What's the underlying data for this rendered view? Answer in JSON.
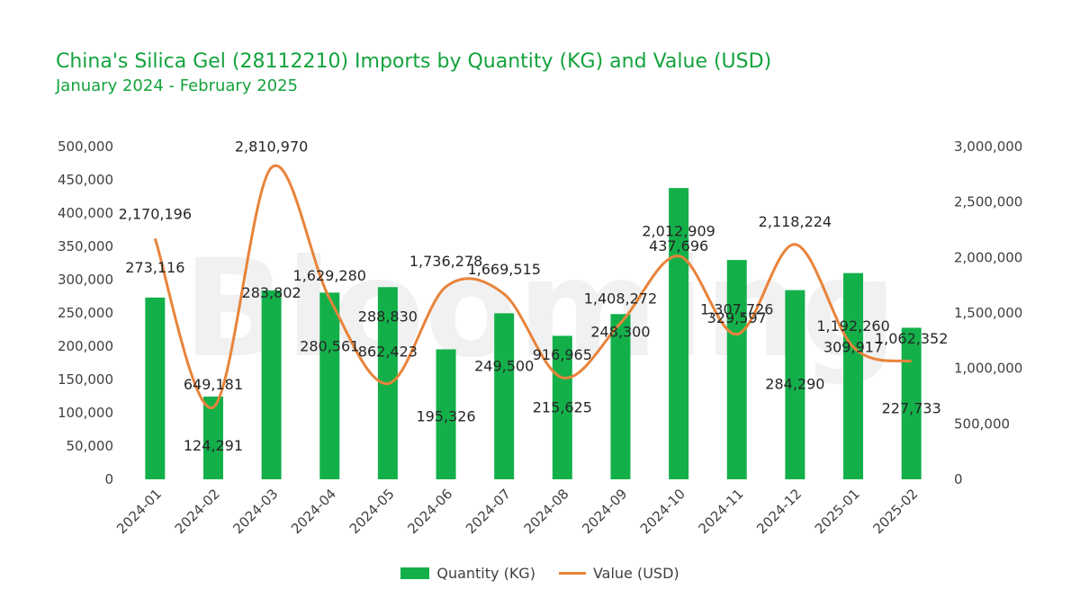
{
  "chart_data": {
    "type": "bar+line",
    "title": "China's Silica Gel (28112210) Imports by Quantity (KG) and Value (USD)",
    "subtitle": "January 2024 - February 2025",
    "categories": [
      "2024-01",
      "2024-02",
      "2024-03",
      "2024-04",
      "2024-05",
      "2024-06",
      "2024-07",
      "2024-08",
      "2024-09",
      "2024-10",
      "2024-11",
      "2024-12",
      "2025-01",
      "2025-02"
    ],
    "series": [
      {
        "name": "Quantity (KG)",
        "type": "bar",
        "axis": "left",
        "color": "#13b04a",
        "values": [
          273116,
          124291,
          283802,
          280561,
          288830,
          195326,
          249500,
          215625,
          248300,
          437696,
          329597,
          284290,
          309917,
          227733
        ],
        "labels": [
          "273,116",
          "124,291",
          "283,802",
          "280,561",
          "288,830",
          "195,326",
          "249,500",
          "215,625",
          "248,300",
          "437,696",
          "329,597",
          "284,290",
          "309,917",
          "227,733"
        ]
      },
      {
        "name": "Value (USD)",
        "type": "line",
        "axis": "right",
        "color": "#e8833a",
        "values": [
          2170196,
          649181,
          2810970,
          1629280,
          862423,
          1736278,
          1669515,
          916965,
          1408272,
          2012909,
          1307726,
          2118224,
          1192260,
          1062352
        ],
        "labels": [
          "2,170,196",
          "649,181",
          "2,810,970",
          "1,629,280",
          "862,423",
          "1,736,278",
          "1,669,515",
          "916,965",
          "1,408,272",
          "2,012,909",
          "1,307,726",
          "2,118,224",
          "1,192,260",
          "1,062,352"
        ]
      }
    ],
    "y_left": {
      "lim": [
        0,
        500000
      ],
      "ticks": [
        "0",
        "50,000",
        "100,000",
        "150,000",
        "200,000",
        "250,000",
        "300,000",
        "350,000",
        "400,000",
        "450,000",
        "500,000"
      ]
    },
    "y_right": {
      "lim": [
        0,
        3000000
      ],
      "ticks": [
        "0",
        "500,000",
        "1,000,000",
        "1,500,000",
        "2,000,000",
        "2,500,000",
        "3,000,000"
      ]
    },
    "watermark": "Blooming",
    "legend": {
      "bar_label": "Quantity (KG)",
      "line_label": "Value (USD)",
      "position": "bottom"
    }
  }
}
